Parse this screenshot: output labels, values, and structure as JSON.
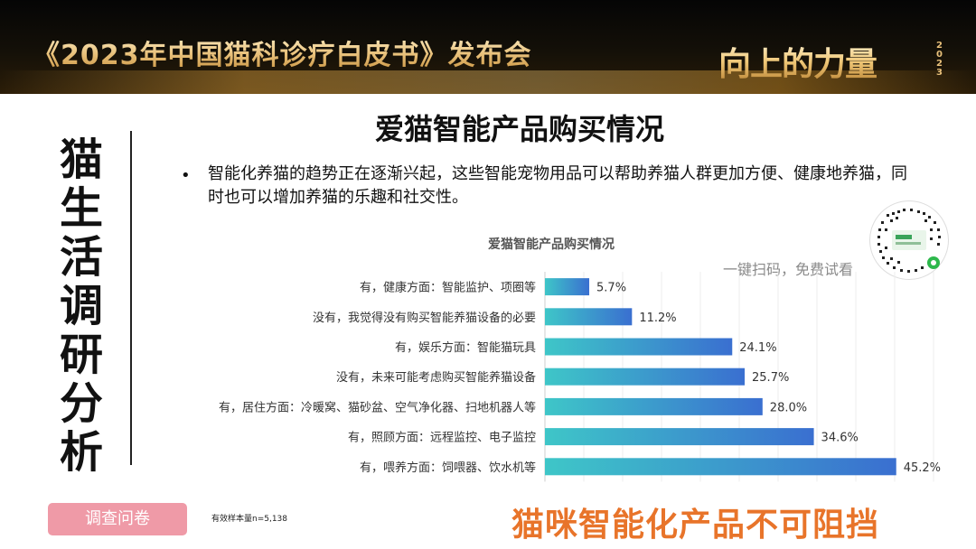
{
  "banner": {
    "title": "《2023年中国猫科诊疗白皮书》发布会",
    "logo_text": "向上的力量",
    "logo_year": "2023"
  },
  "sidebar": {
    "title": "猫生活调研分析"
  },
  "page": {
    "title": "爱猫智能产品购买情况",
    "bullet": "智能化养猫的趋势正在逐渐兴起，这些智能宠物用品可以帮助养猫人群更加方便、健康地养猫，同时也可以增加养猫的乐趣和社交性。",
    "scan_hint": "一键扫码，免费试看",
    "survey_button": "调查问卷",
    "sample_note": "有效样本量n=5,138",
    "conclusion": "猫咪智能化产品不可阻挡"
  },
  "colors": {
    "bar_start": "#3ec6c8",
    "bar_end": "#3a6fd0",
    "conclusion": "#e8742a",
    "survey_button": "#ef9aa7"
  },
  "icons": {
    "qr": "qr-code-icon"
  },
  "chart_data": {
    "type": "bar",
    "orientation": "horizontal",
    "title": "爱猫智能产品购买情况",
    "categories": [
      "有，健康方面：智能监护、项圈等",
      "没有，我觉得没有购买智能养猫设备的必要",
      "有，娱乐方面：智能猫玩具",
      "没有，未来可能考虑购买智能养猫设备",
      "有，居住方面：冷暖窝、猫砂盆、空气净化器、扫地机器人等",
      "有，照顾方面：远程监控、电子监控",
      "有，喂养方面：饲喂器、饮水机等"
    ],
    "values": [
      5.7,
      11.2,
      24.1,
      25.7,
      28.0,
      34.6,
      45.2
    ],
    "value_labels": [
      "5.7%",
      "11.2%",
      "24.1%",
      "25.7%",
      "28.0%",
      "34.6%",
      "45.2%"
    ],
    "unit": "%",
    "xlim": [
      0,
      50
    ],
    "grid": true
  }
}
